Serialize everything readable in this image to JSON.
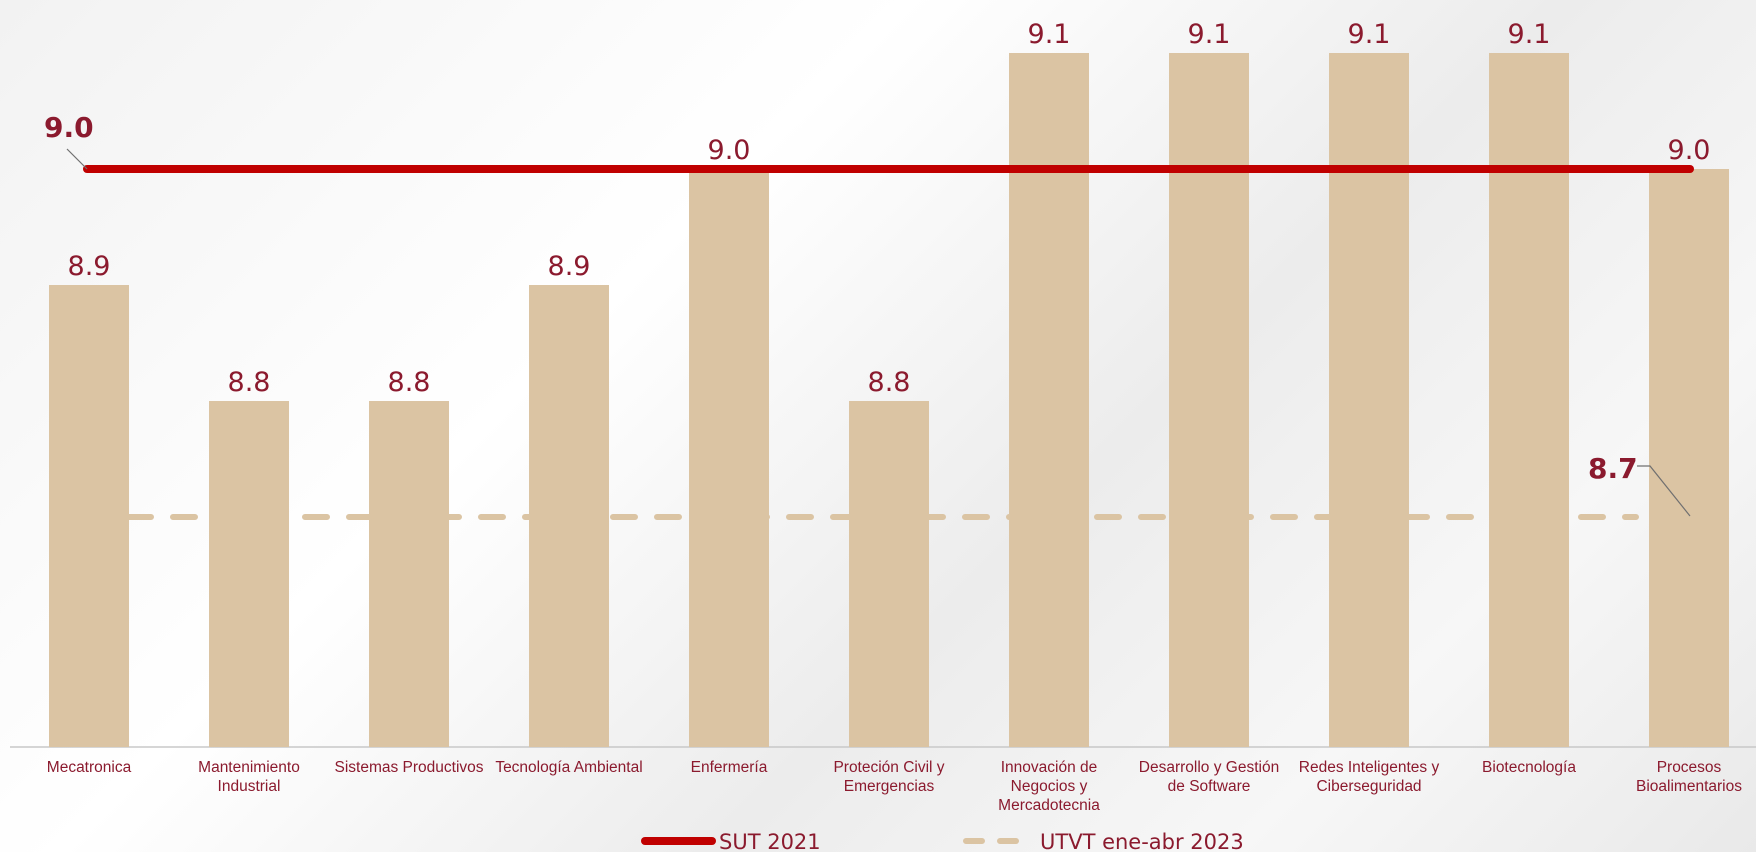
{
  "chart_data": {
    "type": "bar",
    "categories": [
      [
        "Mecatronica"
      ],
      [
        "Mantenimiento",
        "Industrial"
      ],
      [
        "Sistemas Productivos"
      ],
      [
        "Tecnología Ambiental"
      ],
      [
        "Enfermería"
      ],
      [
        "Proteción Civil y",
        "Emergencias"
      ],
      [
        "Innovación de",
        "Negocios y",
        "Mercadotecnia"
      ],
      [
        "Desarrollo y Gestión",
        "de Software"
      ],
      [
        "Redes Inteligentes y",
        "Ciberseguridad"
      ],
      [
        "Biotecnología"
      ],
      [
        "Procesos",
        "Bioalimentarios"
      ]
    ],
    "values": [
      8.9,
      8.8,
      8.8,
      8.9,
      9.0,
      8.8,
      9.1,
      9.1,
      9.1,
      9.1,
      9.0
    ],
    "value_labels": [
      "8.9",
      "8.8",
      "8.8",
      "8.9",
      "9.0",
      "8.8",
      "9.1",
      "9.1",
      "9.1",
      "9.1",
      "9.0"
    ],
    "reference_lines": [
      {
        "name": "SUT 2021",
        "value": 9.0,
        "label": "9.0",
        "color": "#c00000",
        "style": "solid"
      },
      {
        "name": "UTVT ene-abr 2023",
        "value": 8.7,
        "label": "8.7",
        "color": "#dbc4a3",
        "style": "dashed"
      }
    ],
    "bar_color": "#dbc4a3",
    "label_color": "#8b1a2e",
    "axis_color": "#c8c8c8",
    "title": "",
    "xlabel": "",
    "ylabel": "",
    "ylim": [
      8.3,
      9.1
    ],
    "grid": false,
    "legend_position": "bottom-center"
  }
}
